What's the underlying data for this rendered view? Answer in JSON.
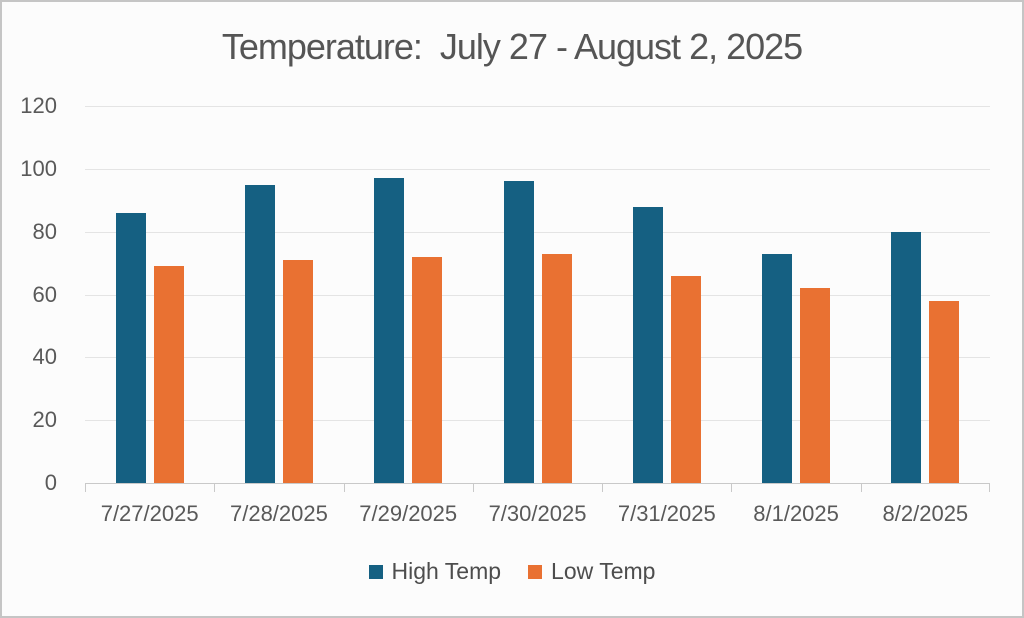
{
  "chart_data": {
    "type": "bar",
    "title": "Temperature:  July 27 - August 2, 2025",
    "categories": [
      "7/27/2025",
      "7/28/2025",
      "7/29/2025",
      "7/30/2025",
      "7/31/2025",
      "8/1/2025",
      "8/2/2025"
    ],
    "series": [
      {
        "name": "High Temp",
        "color": "#156082",
        "values": [
          86,
          95,
          97,
          96,
          88,
          73,
          80
        ]
      },
      {
        "name": "Low Temp",
        "color": "#E97132",
        "values": [
          69,
          71,
          72,
          73,
          66,
          62,
          58
        ]
      }
    ],
    "xlabel": "",
    "ylabel": "",
    "ylim": [
      0,
      120
    ],
    "ytick_step": 20,
    "yticks": [
      0,
      20,
      40,
      60,
      80,
      100,
      120
    ],
    "grid": true,
    "legend_position": "bottom",
    "colors": {
      "high_temp": "#156082",
      "low_temp": "#E97132",
      "gridline": "#e4e4e4",
      "axis_line": "#c9c9c9",
      "tick_label": "#595959",
      "title_text": "#555555",
      "frame_border": "#c5c5c5",
      "background": "#fcfcfc"
    }
  }
}
